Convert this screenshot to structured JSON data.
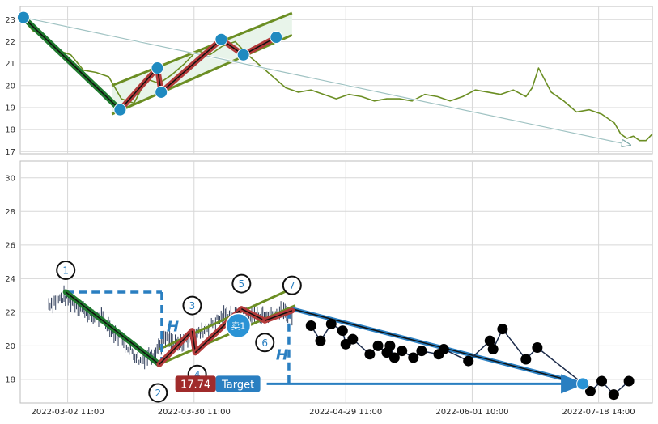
{
  "chart_data": [
    {
      "type": "line",
      "panel": "top",
      "ylim": [
        16.9,
        23.6
      ],
      "y_ticks": [
        "17",
        "18",
        "19",
        "20",
        "21",
        "22",
        "23"
      ],
      "x_range": [
        0,
        100
      ],
      "price_series": {
        "color": "#6b8e23",
        "x": [
          0.5,
          2,
          4,
          6,
          8,
          10,
          12,
          14,
          16,
          18,
          20,
          22,
          24,
          26,
          28,
          30,
          32,
          34,
          36,
          38,
          40,
          42,
          44,
          46,
          48,
          50,
          52,
          54,
          56,
          58,
          60,
          62,
          64,
          66,
          68,
          70,
          72,
          74,
          76,
          78,
          80,
          81,
          82,
          84,
          86,
          88,
          90,
          92,
          94,
          95,
          96,
          97,
          98,
          99,
          100
        ],
        "y": [
          23.0,
          22.5,
          22.2,
          21.6,
          21.4,
          20.7,
          20.6,
          20.4,
          19.4,
          19.2,
          20.3,
          20.1,
          20.5,
          21.0,
          21.6,
          21.4,
          21.8,
          22.0,
          21.4,
          20.9,
          20.4,
          19.9,
          19.7,
          19.8,
          19.6,
          19.4,
          19.6,
          19.5,
          19.3,
          19.4,
          19.4,
          19.3,
          19.6,
          19.5,
          19.3,
          19.5,
          19.8,
          19.7,
          19.6,
          19.8,
          19.5,
          19.9,
          20.8,
          19.7,
          19.3,
          18.8,
          18.9,
          18.7,
          18.3,
          17.8,
          17.6,
          17.7,
          17.5,
          17.5,
          17.8
        ]
      },
      "trend_arrow": {
        "from": [
          0.5,
          23.1
        ],
        "to": [
          96.5,
          17.3
        ],
        "color": "#9fc2c2"
      },
      "channel": {
        "upper": {
          "from": [
            14.5,
            20.0
          ],
          "to": [
            43,
            23.3
          ]
        },
        "lower": {
          "from": [
            14.5,
            18.7
          ],
          "to": [
            43,
            22.3
          ]
        },
        "fill": "#e8f4ea",
        "color": "#6b8e23"
      },
      "wave": {
        "points": [
          [
            0.5,
            23.1
          ],
          [
            15.8,
            18.9
          ],
          [
            21.7,
            20.8
          ],
          [
            22.3,
            19.7
          ],
          [
            31.8,
            22.1
          ],
          [
            35.3,
            21.4
          ],
          [
            40.5,
            22.2
          ]
        ],
        "first_leg_color": "#1f7a2e",
        "rest_color": "#b23a3a",
        "marker_color": "#1f8ac0"
      }
    },
    {
      "type": "line",
      "panel": "bottom",
      "ylim": [
        16.6,
        31.0
      ],
      "y_ticks": [
        "18",
        "20",
        "22",
        "24",
        "26",
        "28",
        "30"
      ],
      "x_range": [
        0,
        100
      ],
      "x_tick_positions": [
        7.5,
        27.5,
        51.5,
        71.5,
        91.5
      ],
      "x_tick_labels": [
        "2022-03-02 11:00",
        "2022-03-30 11:00",
        "2022-04-29 11:00",
        "2022-06-01 10:00",
        "2022-07-18 14:00"
      ],
      "candles": {
        "color": "#1c2b4a",
        "x_start": 4.5,
        "x_end": 43,
        "path": [
          [
            4.5,
            22.5
          ],
          [
            7,
            22.9
          ],
          [
            9,
            22.5
          ],
          [
            11,
            21.8
          ],
          [
            13,
            21.6
          ],
          [
            15,
            20.8
          ],
          [
            17,
            20.0
          ],
          [
            19,
            19.1
          ],
          [
            21,
            19.6
          ],
          [
            23,
            20.4
          ],
          [
            25,
            20.0
          ],
          [
            27,
            20.5
          ],
          [
            29,
            20.9
          ],
          [
            31,
            21.5
          ],
          [
            33,
            21.9
          ],
          [
            35,
            21.6
          ],
          [
            37,
            21.9
          ],
          [
            39,
            21.8
          ],
          [
            41,
            22.0
          ],
          [
            43,
            21.8
          ]
        ]
      },
      "wave_labels": [
        "1",
        "2",
        "3",
        "4",
        "5",
        "6",
        "7"
      ],
      "wave_points": [
        [
          7.2,
          23.2
        ],
        [
          22.0,
          18.9
        ],
        [
          27.2,
          20.9
        ],
        [
          27.7,
          19.6
        ],
        [
          35.0,
          22.2
        ],
        [
          38.7,
          21.5
        ],
        [
          43.0,
          22.1
        ]
      ],
      "wave_label_offsets": [
        [
          0,
          1.3
        ],
        [
          -0.2,
          -1.7
        ],
        [
          0,
          1.5
        ],
        [
          0.3,
          -1.3
        ],
        [
          0,
          1.5
        ],
        [
          0,
          -1.3
        ],
        [
          0,
          1.5
        ]
      ],
      "h_label": "H",
      "h_box": {
        "x0": 7.2,
        "x1": 22.4,
        "y_top": 23.2,
        "y_bottom": 18.7
      },
      "h_drop": {
        "x": 42.5,
        "y_top": 22.1,
        "y_bottom": 17.6
      },
      "channel": {
        "upper": {
          "from": [
            22,
            19.8
          ],
          "to": [
            43.5,
            23.5
          ]
        },
        "lower": {
          "from": [
            22,
            18.9
          ],
          "to": [
            43.5,
            22.4
          ]
        },
        "color": "#6b8e23"
      },
      "sell_marker": {
        "label": "卖1",
        "x": 34.5,
        "y": 21.2,
        "color": "#2a93d5"
      },
      "target": {
        "price_text": "17.74",
        "label": "Target",
        "price_bg": "#a02b2b",
        "label_bg": "#2a7fc1",
        "arrow_from": [
          39,
          17.74
        ],
        "arrow_to": [
          89,
          17.74
        ],
        "arrow_color": "#2a7fc1"
      },
      "projection_line": {
        "from": [
          43,
          22.2
        ],
        "to": [
          89,
          17.74
        ],
        "color": "#2a7fc1"
      },
      "projection_dots": {
        "color": "#000000",
        "points": [
          [
            46.0,
            21.2
          ],
          [
            47.5,
            20.3
          ],
          [
            49.2,
            21.3
          ],
          [
            51.0,
            20.9
          ],
          [
            51.5,
            20.1
          ],
          [
            52.6,
            20.4
          ],
          [
            55.3,
            19.5
          ],
          [
            56.6,
            20.0
          ],
          [
            58.0,
            19.6
          ],
          [
            58.5,
            20.0
          ],
          [
            59.2,
            19.3
          ],
          [
            60.4,
            19.7
          ],
          [
            62.2,
            19.3
          ],
          [
            63.5,
            19.7
          ],
          [
            66.2,
            19.5
          ],
          [
            67.0,
            19.8
          ],
          [
            70.9,
            19.1
          ],
          [
            74.3,
            20.3
          ],
          [
            74.8,
            19.8
          ],
          [
            76.3,
            21.0
          ],
          [
            80.0,
            19.2
          ],
          [
            81.8,
            19.9
          ],
          [
            89.2,
            17.7
          ],
          [
            90.2,
            17.3
          ],
          [
            92.0,
            17.9
          ],
          [
            93.9,
            17.1
          ],
          [
            96.3,
            17.9
          ]
        ]
      }
    }
  ]
}
